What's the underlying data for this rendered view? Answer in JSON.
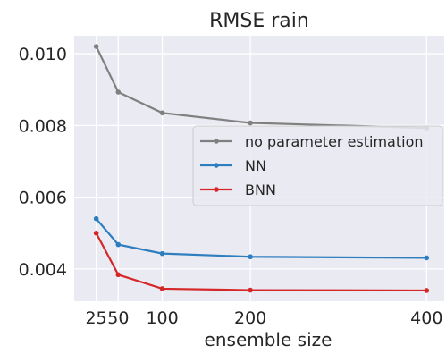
{
  "chart_data": {
    "type": "line",
    "title": "RMSE rain",
    "xlabel": "ensemble size",
    "ylabel": "",
    "x": [
      25,
      50,
      100,
      200,
      400
    ],
    "xticks": [
      25,
      50,
      100,
      200,
      400
    ],
    "yticks": [
      0.004,
      0.006,
      0.008,
      0.01
    ],
    "ytick_labels": [
      "0.004",
      "0.006",
      "0.008",
      "0.010"
    ],
    "xlim": [
      0,
      420
    ],
    "ylim": [
      0.0031,
      0.0105
    ],
    "grid": true,
    "legend_position": "center-right",
    "series": [
      {
        "name": "no parameter estimation",
        "color": "#808080",
        "values": [
          0.0102,
          0.00893,
          0.00835,
          0.00807,
          0.00793
        ]
      },
      {
        "name": "NN",
        "color": "#2e7ebf",
        "values": [
          0.0054,
          0.00468,
          0.00443,
          0.00434,
          0.00431
        ]
      },
      {
        "name": "BNN",
        "color": "#d62728",
        "values": [
          0.005,
          0.00384,
          0.00345,
          0.00341,
          0.0034
        ]
      }
    ]
  }
}
